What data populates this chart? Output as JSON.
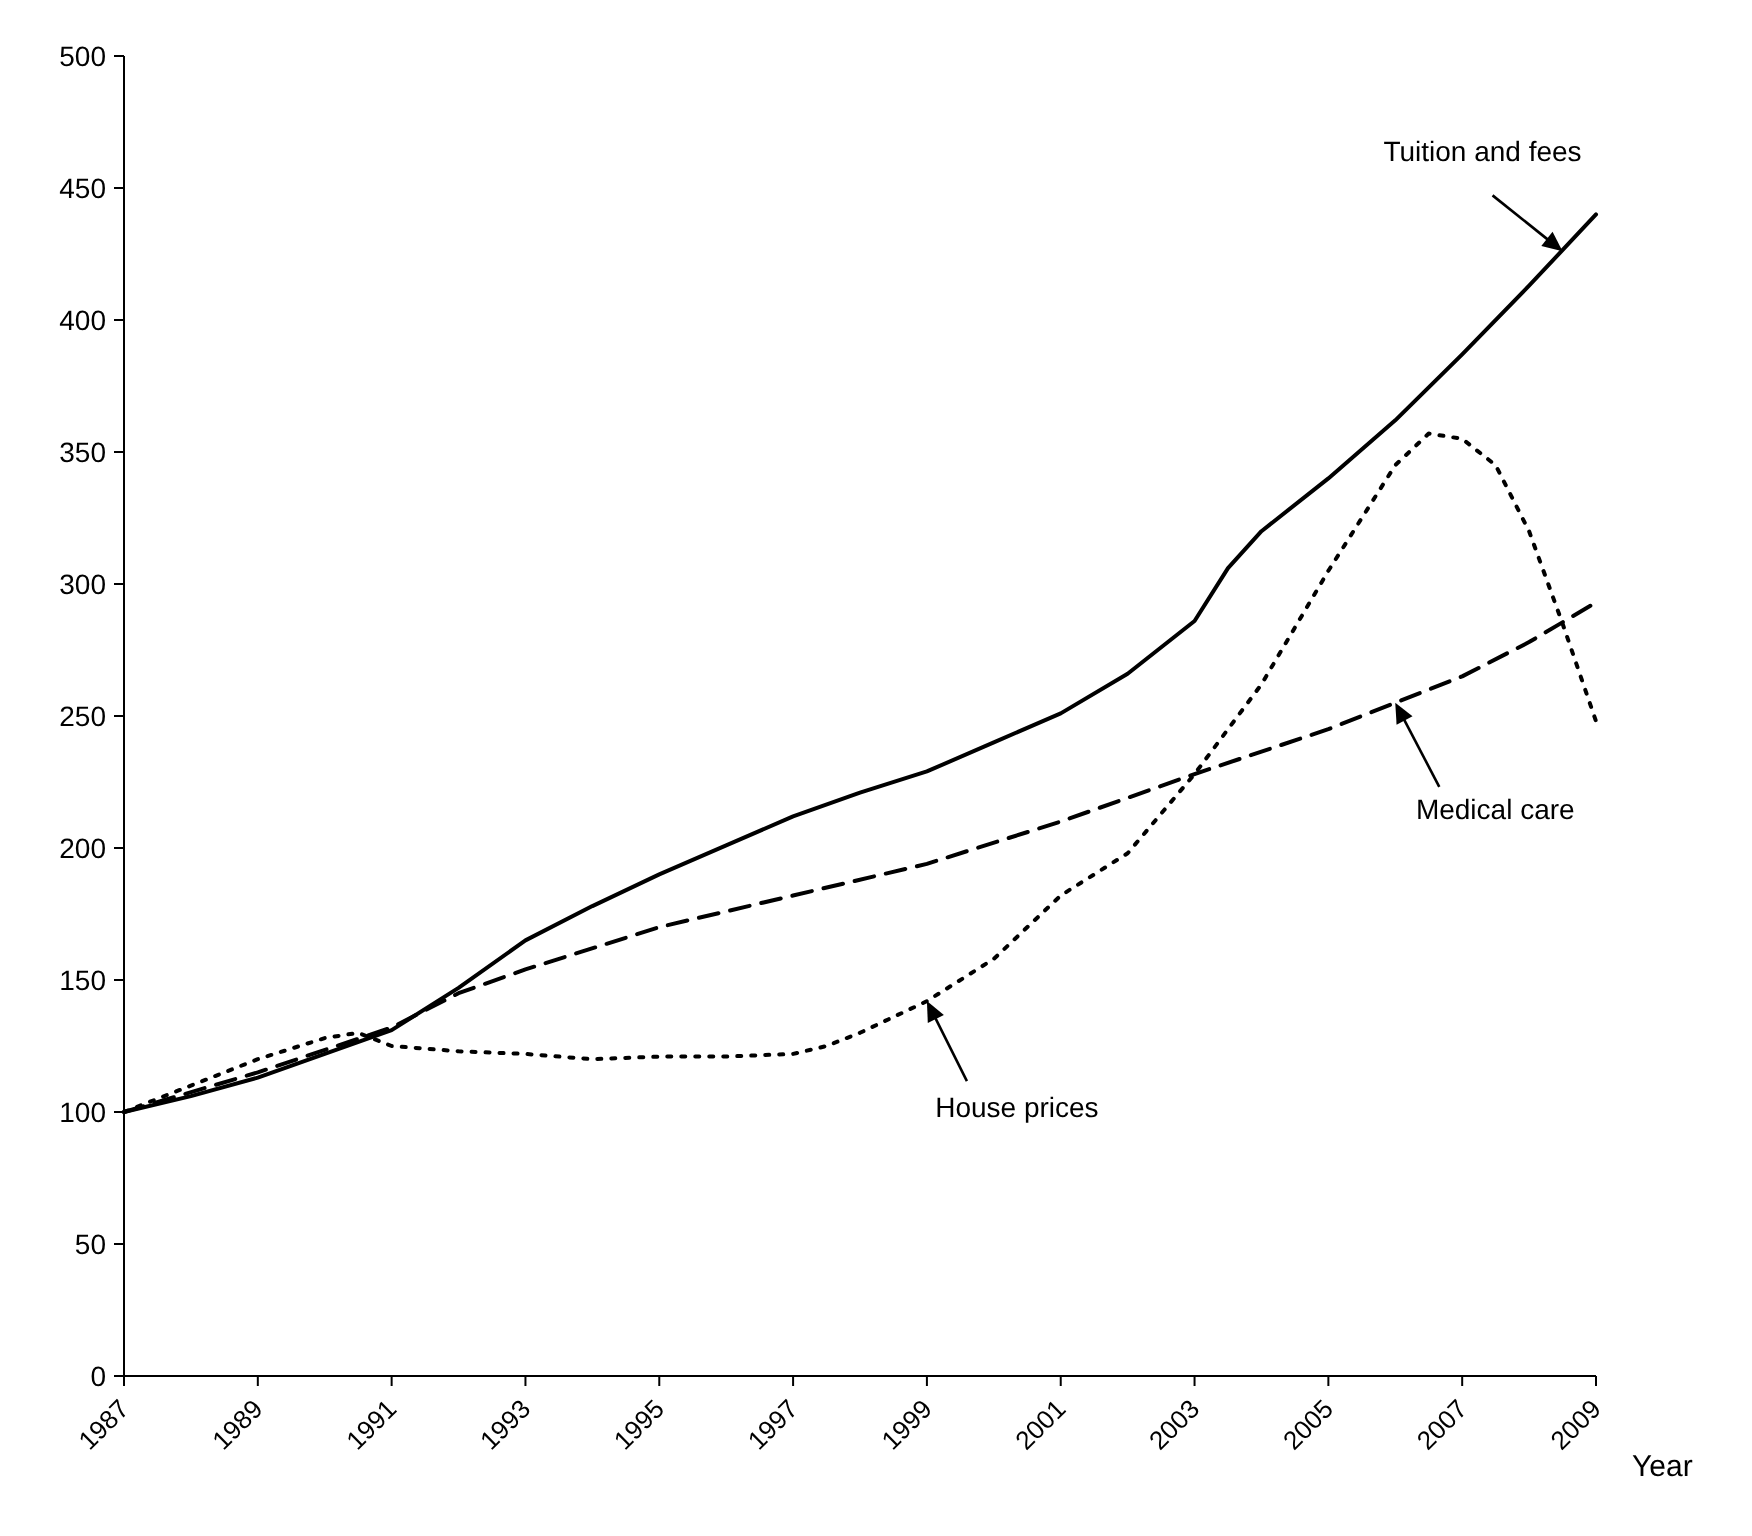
{
  "chart_data": {
    "type": "line",
    "xlabel": "Year",
    "x": [
      1987,
      1988,
      1989,
      1990,
      1991,
      1992,
      1993,
      1994,
      1995,
      1996,
      1997,
      1998,
      1999,
      2000,
      2001,
      2002,
      2003,
      2003.5,
      2004,
      2005,
      2006,
      2007,
      2008,
      2009
    ],
    "xlim": [
      1987,
      2009
    ],
    "xticks": [
      1987,
      1989,
      1991,
      1993,
      1995,
      1997,
      1999,
      2001,
      2003,
      2005,
      2007,
      2009
    ],
    "ylim": [
      0,
      500
    ],
    "yticks": [
      0,
      50,
      100,
      150,
      200,
      250,
      300,
      350,
      400,
      450,
      500
    ],
    "grid": false,
    "series": [
      {
        "color": "#000000",
        "line_style": "solid",
        "values": [
          100,
          106,
          113,
          122,
          131,
          147,
          165,
          178,
          190,
          201,
          212,
          221,
          229,
          240,
          251,
          266,
          286,
          306,
          320,
          340,
          362,
          387,
          413,
          440
        ]
      },
      {
        "color": "#000000",
        "line_style": "dashed",
        "x": [
          1987,
          1989,
          1991,
          1992,
          1993,
          1995,
          1997,
          1999,
          2001,
          2003,
          2005,
          2007,
          2008,
          2009
        ],
        "values": [
          100,
          115,
          132,
          145,
          154,
          170,
          182,
          194,
          210,
          228,
          245,
          265,
          278,
          293
        ]
      },
      {
        "color": "#000000",
        "line_style": "dotted",
        "x": [
          1987,
          1988,
          1989,
          1990,
          1990.5,
          1991,
          1992,
          1993,
          1994,
          1995,
          1996,
          1997,
          1997.5,
          1998,
          1999,
          2000,
          2001,
          2002,
          2003,
          2004,
          2005,
          2006,
          2006.5,
          2007,
          2007.5,
          2008,
          2008.5,
          2009
        ],
        "values": [
          100,
          110,
          120,
          128,
          130,
          125,
          123,
          122,
          120,
          121,
          121,
          122,
          125,
          130,
          142,
          158,
          182,
          198,
          228,
          262,
          305,
          345,
          357,
          355,
          345,
          320,
          285,
          248
        ]
      }
    ],
    "annotations": [
      {
        "text": "Tuition and fees",
        "x": 2008.5,
        "y": 426
      },
      {
        "text": "Medical care",
        "x": 2006,
        "y": 255
      },
      {
        "text": "House prices",
        "x": 1999,
        "y": 142
      }
    ]
  }
}
